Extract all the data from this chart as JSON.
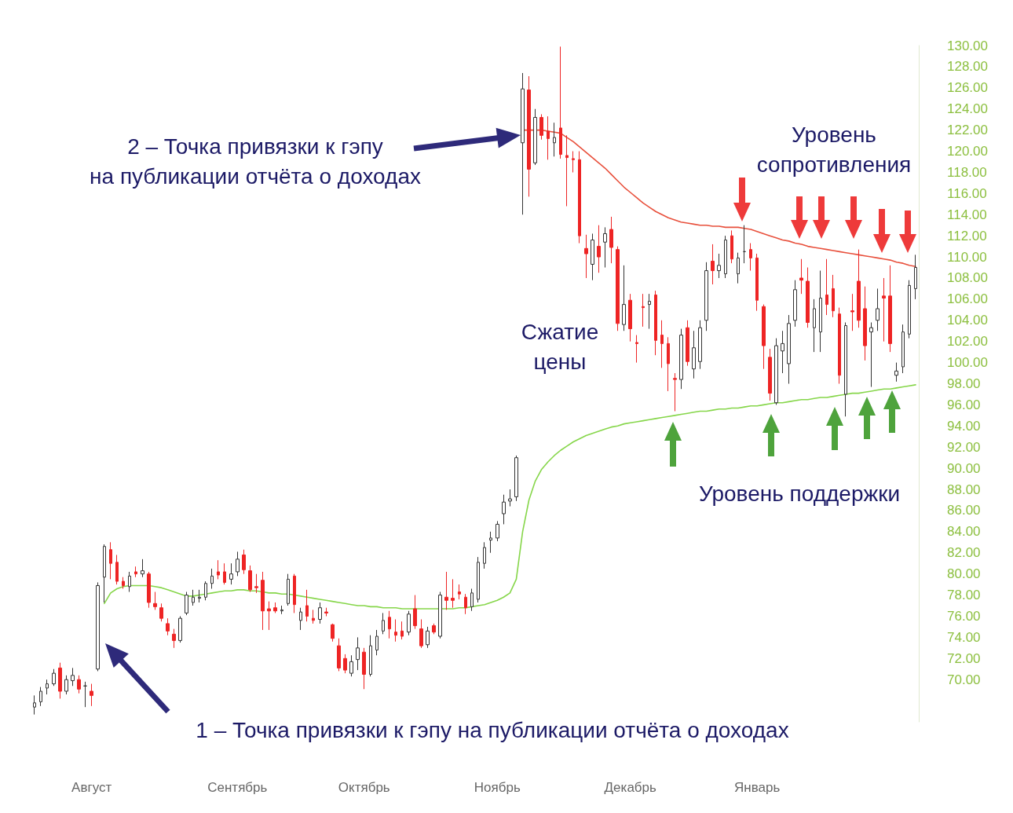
{
  "chart_data": {
    "type": "candlestick",
    "annotations": [
      "2 – Точка привязки к гэпу\nна публикации отчёта о доходах",
      "Уровень\nсопротивления",
      "Сжатие\nцены",
      "Уровень поддержки",
      "1 – Точка привязки к гэпу на публикации отчёта о доходах"
    ],
    "categories": [
      null,
      null,
      null,
      null,
      null,
      null,
      null,
      null,
      null,
      "Август",
      null,
      null,
      null,
      null,
      null,
      null,
      null,
      null,
      null,
      null,
      null,
      null,
      null,
      null,
      null,
      null,
      null,
      null,
      null,
      null,
      null,
      null,
      "Сентябрь",
      null,
      null,
      null,
      null,
      null,
      null,
      null,
      null,
      null,
      null,
      null,
      null,
      null,
      null,
      null,
      null,
      null,
      null,
      null,
      "Октябрь",
      null,
      null,
      null,
      null,
      null,
      null,
      null,
      null,
      null,
      null,
      null,
      null,
      null,
      null,
      null,
      null,
      null,
      null,
      null,
      null,
      "Ноябрь",
      null,
      null,
      null,
      null,
      null,
      null,
      null,
      null,
      null,
      null,
      null,
      null,
      null,
      null,
      null,
      null,
      null,
      null,
      null,
      null,
      "Декабрь",
      null,
      null,
      null,
      null,
      null,
      null,
      null,
      null,
      null,
      null,
      null,
      null,
      null,
      null,
      null,
      null,
      null,
      null,
      null,
      "Январь",
      null,
      null,
      null,
      null,
      null,
      null,
      null,
      null,
      null,
      null,
      null,
      null,
      null,
      null,
      null,
      null,
      null,
      null,
      null,
      null,
      null,
      null,
      null,
      null,
      null
    ],
    "colors": [
      "#ffffff",
      "#ffffff",
      "#ffffff",
      "#ffffff",
      "#ee2424",
      "#ffffff",
      "#ffffff",
      "#ee2424",
      "#333333",
      "#ee2424",
      "#ffffff",
      "#ffffff",
      "#ee2424",
      "#ee2424",
      "#ee2424",
      "#ffffff",
      "#ee2424",
      "#ffffff",
      "#ee2424",
      "#ee2424",
      "#ee2424",
      "#ee2424",
      "#ee2424",
      "#ffffff",
      "#ffffff",
      "#ffffff",
      "#ffffff",
      "#ffffff",
      "#ffffff",
      "#ee2424",
      "#ee2424",
      "#ffffff",
      "#ffffff",
      "#ee2424",
      "#ee2424",
      "#ee2424",
      "#ee2424",
      "#ee2424",
      "#ee2424",
      "#ffffff",
      "#ffffff",
      "#ee2424",
      "#ffffff",
      "#ee2424",
      "#ee2424",
      "#ffffff",
      "#ee2424",
      "#ee2424",
      "#ee2424",
      "#ee2424",
      "#ffffff",
      "#ffffff",
      "#ee2424",
      "#ffffff",
      "#ffffff",
      "#ffffff",
      "#ee2424",
      "#ee2424",
      "#ee2424",
      "#ffffff",
      "#ee2424",
      "#ee2424",
      "#ffffff",
      "#ee2424",
      "#ffffff",
      "#ee2424",
      "#ee2424",
      "#ee2424",
      "#ee2424",
      "#ffffff",
      "#ffffff",
      "#ffffff",
      "#ffffff",
      "#ffffff",
      "#ffffff",
      "#ffffff",
      "#ffffff",
      "#ffffff",
      "#ee2424",
      "#ffffff",
      "#ee2424",
      "#ee2424",
      "#ffffff",
      "#ee2424",
      "#ee2424",
      "#ee2424",
      "#ee2424",
      "#ee2424",
      "#ffffff",
      "#ee2424",
      "#ffffff",
      "#ee2424",
      "#ee2424",
      "#ffffff",
      "#ee2424",
      "#ee2424",
      "#ee2424",
      "#ffffff",
      "#ee2424",
      "#ee2424",
      "#ee2424",
      "#ee2424",
      "#ffffff",
      "#ee2424",
      "#ffffff",
      "#ffffff",
      "#ffffff",
      "#ee2424",
      "#ffffff",
      "#ffffff",
      "#ee2424",
      "#ffffff",
      "#333333",
      "#ee2424",
      "#ee2424",
      "#ee2424",
      "#ee2424",
      "#ffffff",
      "#ffffff",
      "#ffffff",
      "#ffffff",
      "#ee2424",
      "#ee2424",
      "#ffffff",
      "#ffffff",
      "#ee2424",
      "#ee2424",
      "#ee2424",
      "#ffffff",
      "#ee2424",
      "#ee2424",
      "#ee2424",
      "#ffffff",
      "#ffffff",
      "#ee2424",
      "#ee2424",
      "#ffffff",
      "#ffffff",
      "#ffffff",
      "#ffffff"
    ],
    "ohlc": [
      [
        67.4,
        68.5,
        66.7,
        67.8
      ],
      [
        67.9,
        69.3,
        67.5,
        68.9
      ],
      [
        69.2,
        70.0,
        68.6,
        69.6
      ],
      [
        69.6,
        71.0,
        69.4,
        70.6
      ],
      [
        71.1,
        71.6,
        68.2,
        68.9
      ],
      [
        68.9,
        70.4,
        68.6,
        70.0
      ],
      [
        69.9,
        71.1,
        69.4,
        70.4
      ],
      [
        70.0,
        70.4,
        68.7,
        69.1
      ],
      [
        69.4,
        69.8,
        67.4,
        69.4
      ],
      [
        68.9,
        69.6,
        67.5,
        68.5
      ],
      [
        71.0,
        79.2,
        70.8,
        78.9
      ],
      [
        79.7,
        82.8,
        77.3,
        82.6
      ],
      [
        82.3,
        83.0,
        79.5,
        81.0
      ],
      [
        81.1,
        81.8,
        79.0,
        79.3
      ],
      [
        79.3,
        79.7,
        78.6,
        78.9
      ],
      [
        78.8,
        80.2,
        78.3,
        79.8
      ],
      [
        80.2,
        80.7,
        79.7,
        80.0
      ],
      [
        80.0,
        81.4,
        79.7,
        80.3
      ],
      [
        80.0,
        80.2,
        76.8,
        77.3
      ],
      [
        77.2,
        78.3,
        76.6,
        76.9
      ],
      [
        76.8,
        77.2,
        75.5,
        75.8
      ],
      [
        75.3,
        75.8,
        74.2,
        74.6
      ],
      [
        74.3,
        74.8,
        73.0,
        73.7
      ],
      [
        73.7,
        76.0,
        73.5,
        75.8
      ],
      [
        76.3,
        78.3,
        76.1,
        78.0
      ],
      [
        77.3,
        78.5,
        77.0,
        77.8
      ],
      [
        77.7,
        78.5,
        77.3,
        77.8
      ],
      [
        77.8,
        79.3,
        77.5,
        79.1
      ],
      [
        79.1,
        80.5,
        78.6,
        79.8
      ],
      [
        80.2,
        81.3,
        79.5,
        79.9
      ],
      [
        80.2,
        81.0,
        79.0,
        79.2
      ],
      [
        79.5,
        81.0,
        79.0,
        80.0
      ],
      [
        80.2,
        82.1,
        79.8,
        81.4
      ],
      [
        81.8,
        82.3,
        80.0,
        80.4
      ],
      [
        80.3,
        80.8,
        78.3,
        78.5
      ],
      [
        78.8,
        80.0,
        78.2,
        78.7
      ],
      [
        79.4,
        80.2,
        74.7,
        76.5
      ],
      [
        76.7,
        77.4,
        74.7,
        76.5
      ],
      [
        76.8,
        77.3,
        76.3,
        76.5
      ],
      [
        76.5,
        77.0,
        76.2,
        76.6
      ],
      [
        77.2,
        80.0,
        77.0,
        79.5
      ],
      [
        79.8,
        80.0,
        76.3,
        77.1
      ],
      [
        75.6,
        76.8,
        74.7,
        76.4
      ],
      [
        77.0,
        78.5,
        75.5,
        76.0
      ],
      [
        75.8,
        76.6,
        75.3,
        75.6
      ],
      [
        75.7,
        77.3,
        75.3,
        76.8
      ],
      [
        76.4,
        76.8,
        76.0,
        76.3
      ],
      [
        75.2,
        75.3,
        73.6,
        73.9
      ],
      [
        73.2,
        73.9,
        70.8,
        71.1
      ],
      [
        72.0,
        72.4,
        70.6,
        70.9
      ],
      [
        70.6,
        72.3,
        70.3,
        71.7
      ],
      [
        71.9,
        74.0,
        70.9,
        73.0
      ],
      [
        72.6,
        73.0,
        69.1,
        70.5
      ],
      [
        70.5,
        74.2,
        70.3,
        73.2
      ],
      [
        72.8,
        74.7,
        72.3,
        74.1
      ],
      [
        74.6,
        76.3,
        74.3,
        75.6
      ],
      [
        75.9,
        76.5,
        73.9,
        74.8
      ],
      [
        74.5,
        75.7,
        73.6,
        74.2
      ],
      [
        74.6,
        75.5,
        73.8,
        74.1
      ],
      [
        74.5,
        76.5,
        74.2,
        76.2
      ],
      [
        76.7,
        78.0,
        74.8,
        75.1
      ],
      [
        74.8,
        75.7,
        73.0,
        73.2
      ],
      [
        73.3,
        75.0,
        73.0,
        74.6
      ],
      [
        75.1,
        75.3,
        74.3,
        74.5
      ],
      [
        74.1,
        78.3,
        73.9,
        78.0
      ],
      [
        77.8,
        80.2,
        76.6,
        77.5
      ],
      [
        77.7,
        79.5,
        76.8,
        77.5
      ],
      [
        78.3,
        79.0,
        77.6,
        78.1
      ],
      [
        77.8,
        78.1,
        76.2,
        76.8
      ],
      [
        76.9,
        78.6,
        76.5,
        78.2
      ],
      [
        77.6,
        81.6,
        77.3,
        81.1
      ],
      [
        81.0,
        83.0,
        80.5,
        82.5
      ],
      [
        83.2,
        84.0,
        82.0,
        83.4
      ],
      [
        83.4,
        85.0,
        83.1,
        84.7
      ],
      [
        85.7,
        87.5,
        84.7,
        86.8
      ],
      [
        86.9,
        88.0,
        86.4,
        87.1
      ],
      [
        87.3,
        91.2,
        86.9,
        91.0
      ],
      [
        120.8,
        127.4,
        114.0,
        125.9
      ],
      [
        125.8,
        127.1,
        115.7,
        118.3
      ],
      [
        118.9,
        124.0,
        118.7,
        123.2
      ],
      [
        123.2,
        123.5,
        121.1,
        121.5
      ],
      [
        121.9,
        123.3,
        119.2,
        121.2
      ],
      [
        120.8,
        122.7,
        119.5,
        121.3
      ],
      [
        122.2,
        129.9,
        119.3,
        119.7
      ],
      [
        119.6,
        121.5,
        114.8,
        119.4
      ],
      [
        119.3,
        120.0,
        118.0,
        119.2
      ],
      [
        119.2,
        120.0,
        111.3,
        112.0
      ],
      [
        110.8,
        112.1,
        108.0,
        110.3
      ],
      [
        109.3,
        112.2,
        107.8,
        111.6
      ],
      [
        111.0,
        113.0,
        108.5,
        110.0
      ],
      [
        111.4,
        112.8,
        109.0,
        112.2
      ],
      [
        112.6,
        113.8,
        109.4,
        110.9
      ],
      [
        110.7,
        111.0,
        103.0,
        103.7
      ],
      [
        103.6,
        109.2,
        103.0,
        105.5
      ],
      [
        105.9,
        106.5,
        102.0,
        103.2
      ],
      [
        101.9,
        102.6,
        100.0,
        101.8
      ],
      [
        105.3,
        106.5,
        103.4,
        105.2
      ],
      [
        105.5,
        106.5,
        103.2,
        105.8
      ],
      [
        106.4,
        106.8,
        100.7,
        102.1
      ],
      [
        102.6,
        104.0,
        99.5,
        101.8
      ],
      [
        101.8,
        102.4,
        97.3,
        99.9
      ],
      [
        98.5,
        99.0,
        95.4,
        98.4
      ],
      [
        98.4,
        103.2,
        97.5,
        102.6
      ],
      [
        103.3,
        104.0,
        99.7,
        100.1
      ],
      [
        99.4,
        103.0,
        98.5,
        101.4
      ],
      [
        100.1,
        104.0,
        99.4,
        103.3
      ],
      [
        104.0,
        109.5,
        103.0,
        108.7
      ],
      [
        109.6,
        111.2,
        107.4,
        108.7
      ],
      [
        108.7,
        110.3,
        108.0,
        109.2
      ],
      [
        108.4,
        112.0,
        108.0,
        111.6
      ],
      [
        112.0,
        112.5,
        109.4,
        109.8
      ],
      [
        108.4,
        110.4,
        107.5,
        109.9
      ],
      [
        110.5,
        113.0,
        109.4,
        110.5
      ],
      [
        110.7,
        111.3,
        108.7,
        109.9
      ],
      [
        109.9,
        110.3,
        104.9,
        105.9
      ],
      [
        105.3,
        105.5,
        99.4,
        101.6
      ],
      [
        100.5,
        101.3,
        96.4,
        97.1
      ],
      [
        96.2,
        102.3,
        96.0,
        101.6
      ],
      [
        101.1,
        103.0,
        99.0,
        101.8
      ],
      [
        99.9,
        104.5,
        98.0,
        103.7
      ],
      [
        104.0,
        107.8,
        103.4,
        106.9
      ],
      [
        108.0,
        109.8,
        106.5,
        107.8
      ],
      [
        107.7,
        109.0,
        103.3,
        103.8
      ],
      [
        103.3,
        106.0,
        101.0,
        105.1
      ],
      [
        102.9,
        108.7,
        101.0,
        106.1
      ],
      [
        106.4,
        109.8,
        104.5,
        105.5
      ],
      [
        107.0,
        108.3,
        104.3,
        104.9
      ],
      [
        104.6,
        105.2,
        98.0,
        98.8
      ],
      [
        97.0,
        103.8,
        94.9,
        103.5
      ],
      [
        104.9,
        106.5,
        103.0,
        104.8
      ],
      [
        107.7,
        110.7,
        103.3,
        104.0
      ],
      [
        105.1,
        107.2,
        100.2,
        101.6
      ],
      [
        102.9,
        103.8,
        97.7,
        103.3
      ],
      [
        104.0,
        107.0,
        103.0,
        105.1
      ],
      [
        106.3,
        108.0,
        102.0,
        106.1
      ],
      [
        106.3,
        109.2,
        101.0,
        101.8
      ],
      [
        98.8,
        100.0,
        98.2,
        99.2
      ],
      [
        99.6,
        103.6,
        99.0,
        102.9
      ],
      [
        102.7,
        107.8,
        102.3,
        107.3
      ],
      [
        107.0,
        110.2,
        106.0,
        109.0
      ]
    ],
    "series": [
      {
        "type": "line",
        "color": "#86d64a",
        "values": [
          null,
          null,
          null,
          null,
          null,
          null,
          null,
          null,
          null,
          null,
          null,
          77.2,
          78.2,
          78.6,
          78.8,
          78.9,
          78.9,
          78.9,
          78.9,
          78.8,
          78.7,
          78.5,
          78.3,
          78.1,
          77.9,
          77.9,
          78.0,
          78.1,
          78.2,
          78.3,
          78.4,
          78.4,
          78.5,
          78.5,
          78.4,
          78.4,
          78.3,
          78.2,
          78.2,
          78.1,
          78.1,
          78.0,
          77.9,
          77.8,
          77.7,
          77.6,
          77.5,
          77.4,
          77.3,
          77.2,
          77.1,
          77.0,
          77.0,
          76.9,
          76.9,
          76.8,
          76.8,
          76.8,
          76.7,
          76.7,
          76.7,
          76.7,
          76.7,
          76.7,
          76.7,
          76.7,
          76.7,
          76.8,
          76.8,
          76.9,
          77.0,
          77.1,
          77.3,
          77.5,
          77.8,
          78.2,
          79.5,
          84.0,
          87.0,
          88.8,
          89.9,
          90.6,
          91.2,
          91.7,
          92.1,
          92.5,
          92.8,
          93.1,
          93.3,
          93.5,
          93.7,
          93.9,
          94.0,
          94.2,
          94.3,
          94.4,
          94.5,
          94.6,
          94.7,
          94.8,
          94.9,
          95.0,
          95.1,
          95.2,
          95.3,
          95.4,
          95.4,
          95.5,
          95.6,
          95.6,
          95.7,
          95.7,
          95.8,
          95.9,
          95.9,
          96.0,
          96.1,
          96.2,
          96.2,
          96.3,
          96.4,
          96.5,
          96.5,
          96.6,
          96.7,
          96.7,
          96.8,
          96.9,
          97.0,
          97.1,
          97.1,
          97.2,
          97.3,
          97.4,
          97.5,
          97.5,
          97.6,
          97.7,
          97.8,
          97.9
        ]
      },
      {
        "type": "line",
        "color": "#e8503c",
        "values": [
          null,
          null,
          null,
          null,
          null,
          null,
          null,
          null,
          null,
          null,
          null,
          null,
          null,
          null,
          null,
          null,
          null,
          null,
          null,
          null,
          null,
          null,
          null,
          null,
          null,
          null,
          null,
          null,
          null,
          null,
          null,
          null,
          null,
          null,
          null,
          null,
          null,
          null,
          null,
          null,
          null,
          null,
          null,
          null,
          null,
          null,
          null,
          null,
          null,
          null,
          null,
          null,
          null,
          null,
          null,
          null,
          null,
          null,
          null,
          null,
          null,
          null,
          null,
          null,
          null,
          null,
          null,
          null,
          null,
          null,
          null,
          null,
          null,
          null,
          null,
          null,
          null,
          122.0,
          122.0,
          122.0,
          122.0,
          121.9,
          121.8,
          121.7,
          121.3,
          120.9,
          120.4,
          119.9,
          119.4,
          118.9,
          118.4,
          117.8,
          117.2,
          116.6,
          116.1,
          115.6,
          115.1,
          114.7,
          114.3,
          114.0,
          113.7,
          113.5,
          113.3,
          113.2,
          113.1,
          113.0,
          113.0,
          112.9,
          112.9,
          112.8,
          112.8,
          112.8,
          112.7,
          112.6,
          112.4,
          112.2,
          112.0,
          111.8,
          111.6,
          111.5,
          111.3,
          111.2,
          111.0,
          110.9,
          110.8,
          110.7,
          110.6,
          110.5,
          110.4,
          110.3,
          110.2,
          110.1,
          110.0,
          109.9,
          109.8,
          109.7,
          109.5,
          109.4,
          109.2,
          109.1
        ]
      }
    ],
    "ylim": [
      66,
      130
    ],
    "yticks": [
      {
        "value": 70,
        "label": "70.00"
      },
      {
        "value": 72,
        "label": "72.00"
      },
      {
        "value": 74,
        "label": "74.00"
      },
      {
        "value": 76,
        "label": "76.00"
      },
      {
        "value": 78,
        "label": "78.00"
      },
      {
        "value": 80,
        "label": "80.00"
      },
      {
        "value": 82,
        "label": "82.00"
      },
      {
        "value": 84,
        "label": "84.00"
      },
      {
        "value": 86,
        "label": "86.00"
      },
      {
        "value": 88,
        "label": "88.00"
      },
      {
        "value": 90,
        "label": "90.00"
      },
      {
        "value": 92,
        "label": "92.00"
      },
      {
        "value": 94,
        "label": "94.00"
      },
      {
        "value": 96,
        "label": "96.00"
      },
      {
        "value": 98,
        "label": "98.00"
      },
      {
        "value": 100,
        "label": "100.00"
      },
      {
        "value": 102,
        "label": "102.00"
      },
      {
        "value": 104,
        "label": "104.00"
      },
      {
        "value": 106,
        "label": "106.00"
      },
      {
        "value": 108,
        "label": "108.00"
      },
      {
        "value": 110,
        "label": "110.00"
      },
      {
        "value": 112,
        "label": "112.00"
      },
      {
        "value": 114,
        "label": "114.00"
      },
      {
        "value": 116,
        "label": "116.00"
      },
      {
        "value": 118,
        "label": "118.00"
      },
      {
        "value": 120,
        "label": "120.00"
      },
      {
        "value": 122,
        "label": "122.00"
      },
      {
        "value": 124,
        "label": "124.00"
      },
      {
        "value": 126,
        "label": "126.00"
      },
      {
        "value": 128,
        "label": "128.00"
      },
      {
        "value": 130,
        "label": "130.00"
      }
    ]
  }
}
